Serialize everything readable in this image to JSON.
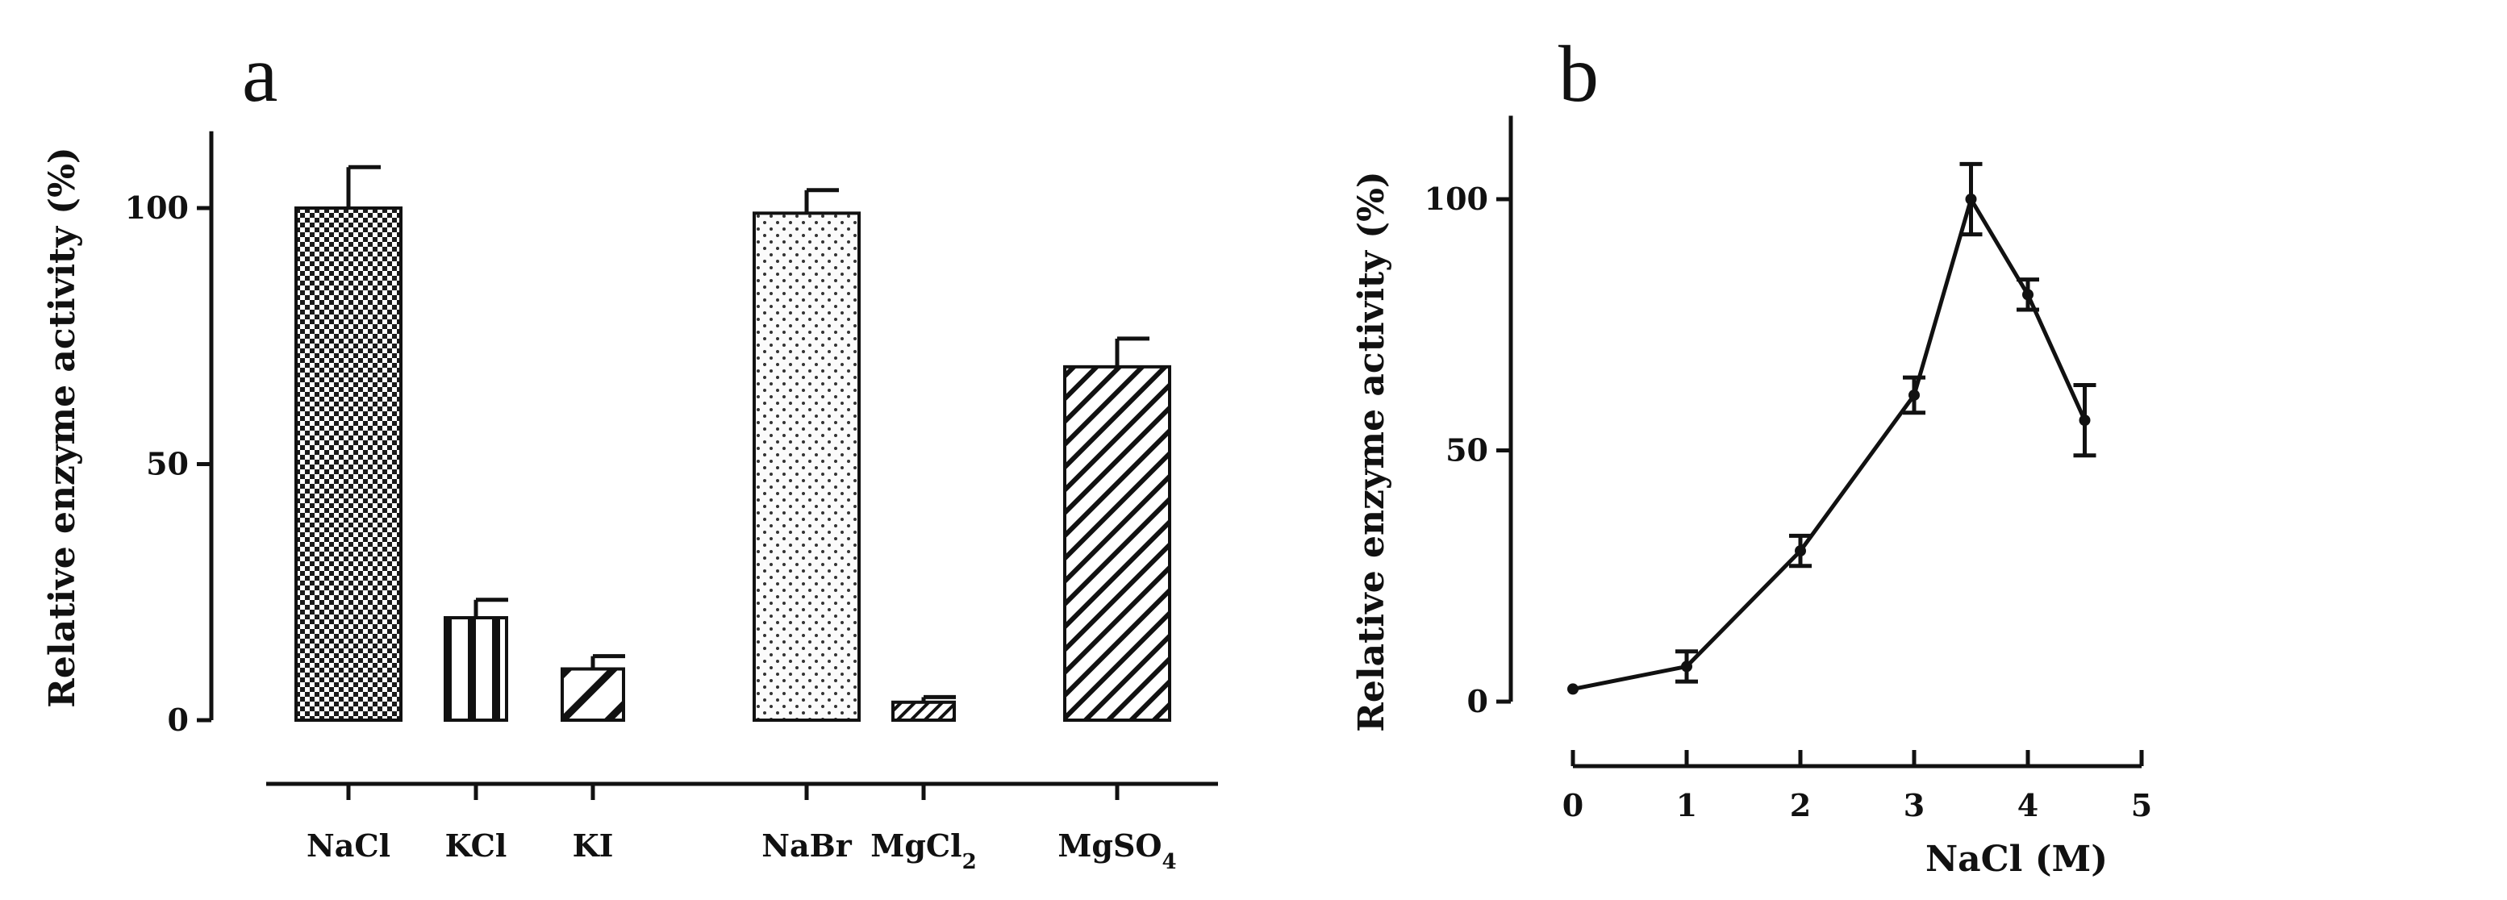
{
  "chart_data": [
    {
      "panel": "a",
      "type": "bar",
      "title": "",
      "xlabel": "",
      "ylabel": "Relative enzyme activity (%)",
      "ylim": [
        0,
        115
      ],
      "yticks": [
        0,
        50,
        100
      ],
      "grid": false,
      "categories": [
        "NaCl",
        "KCl",
        "KI",
        "NaBr",
        "MgCl",
        "MgSO"
      ],
      "category_subscripts": [
        "",
        "",
        "",
        "",
        "2",
        "4"
      ],
      "values": [
        100,
        20,
        10,
        99,
        3.5,
        69
      ],
      "errors": [
        8,
        3.5,
        2.5,
        4.5,
        1,
        5.5
      ],
      "patterns": [
        "checker",
        "vertical-stripes",
        "diagonal-wide",
        "dots",
        "diagonal-fine",
        "diagonal-medium"
      ]
    },
    {
      "panel": "b",
      "type": "line",
      "title": "",
      "xlabel": "NaCl (M)",
      "ylabel": "Relative enzyme activity (%)",
      "xlim": [
        0,
        5
      ],
      "ylim": [
        0,
        115
      ],
      "xticks": [
        0,
        1,
        2,
        3,
        4,
        5
      ],
      "yticks": [
        0,
        50,
        100
      ],
      "grid": false,
      "x": [
        0,
        1,
        2,
        3,
        3.5,
        4,
        4.5
      ],
      "y": [
        2.5,
        7,
        30,
        61,
        100,
        81,
        56
      ],
      "errors": [
        0.5,
        3,
        3,
        3.5,
        7,
        3,
        7
      ]
    }
  ]
}
